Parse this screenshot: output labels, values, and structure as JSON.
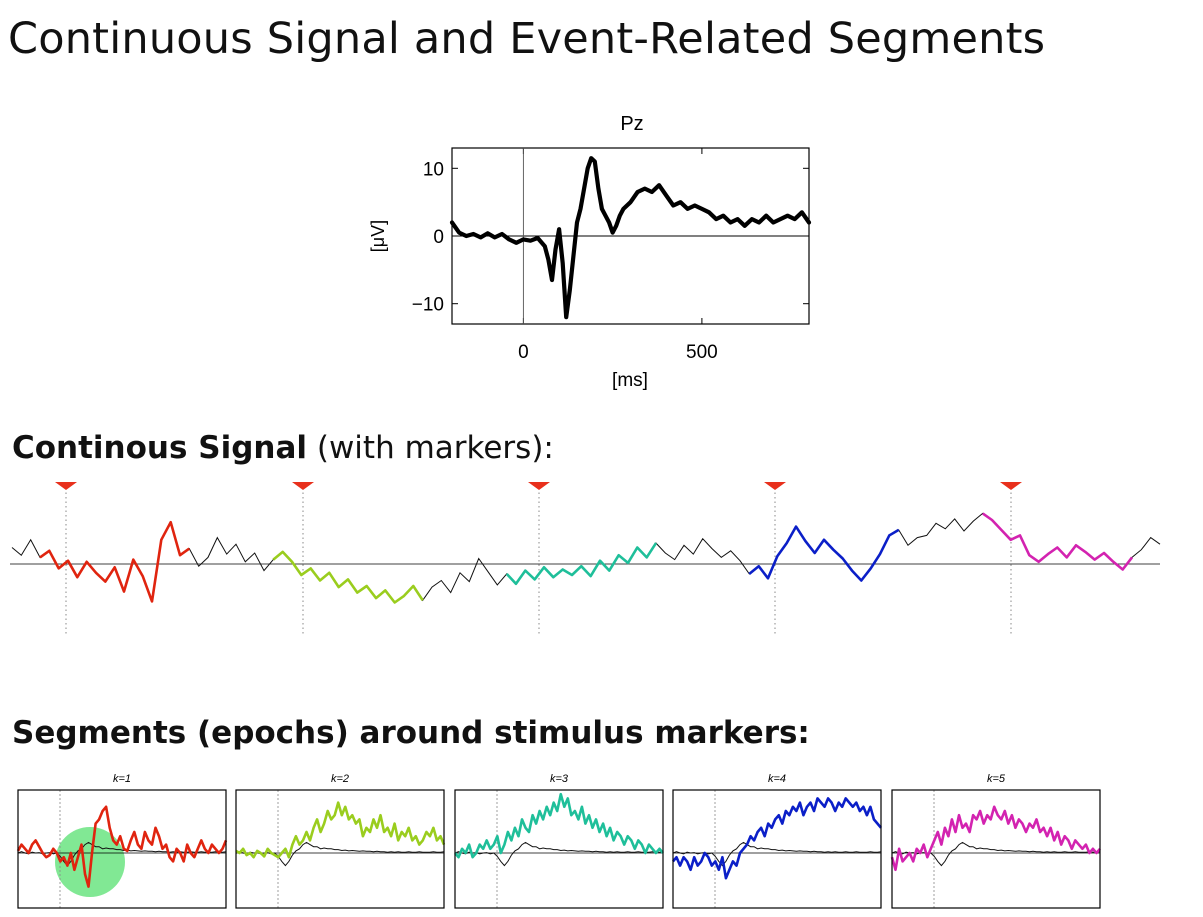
{
  "slide": {
    "title": "Continuous Signal and Event-Related Segments",
    "continuous_heading_bold": "Continous Signal",
    "continuous_heading_rest": " (with markers):",
    "segments_heading": "Segments (epochs) around stimulus markers:"
  },
  "colors": {
    "erp": "#000000",
    "baseline": "#000000",
    "marker": "#e8301c",
    "highlight": "#3ddc5a",
    "segment_colors": [
      "#e0240f",
      "#9acd1e",
      "#1fbf9a",
      "#0b1fc8",
      "#d323b0"
    ]
  },
  "chart_data": [
    {
      "type": "line",
      "title": "Pz",
      "xlabel": "[ms]",
      "ylabel": "[μV]",
      "xlim": [
        -200,
        800
      ],
      "ylim": [
        -13,
        13
      ],
      "xticks": [
        0,
        500
      ],
      "xtick_labels": [
        "0",
        "500"
      ],
      "yticks": [
        -10,
        0,
        10
      ],
      "ytick_labels": [
        "−10",
        "0",
        "10"
      ],
      "stimulus_onset_ms": 0,
      "series": [
        {
          "x": [
            -200,
            -180,
            -160,
            -140,
            -120,
            -100,
            -80,
            -60,
            -40,
            -20,
            0,
            20,
            40,
            60,
            70,
            80,
            90,
            100,
            110,
            120,
            130,
            140,
            150,
            160,
            170,
            180,
            190,
            200,
            210,
            220,
            230,
            240,
            250,
            260,
            270,
            280,
            300,
            320,
            340,
            360,
            380,
            400,
            420,
            440,
            460,
            480,
            500,
            520,
            540,
            560,
            580,
            600,
            620,
            640,
            660,
            680,
            700,
            720,
            740,
            760,
            780,
            800
          ],
          "y": [
            2,
            0.5,
            0,
            0.3,
            -0.2,
            0.4,
            -0.2,
            0.3,
            -0.5,
            -1,
            -0.5,
            -0.7,
            -0.3,
            -1.5,
            -3.5,
            -6.5,
            -2,
            1,
            -4,
            -12,
            -8,
            -3,
            2,
            4,
            7,
            10,
            11.5,
            11,
            7,
            4,
            3,
            2,
            0.5,
            1.5,
            3,
            4,
            5,
            6.5,
            7,
            6.5,
            7.5,
            6,
            4.5,
            5,
            4,
            4.5,
            4,
            3.5,
            2.5,
            3,
            2,
            2.5,
            1.5,
            2.5,
            2,
            3,
            2,
            2.5,
            3,
            2.5,
            3.5,
            2
          ]
        }
      ]
    },
    {
      "type": "line",
      "title": "",
      "marker_count": 5,
      "segment_labels": [
        "1",
        "2",
        "3",
        "4",
        "5"
      ],
      "series": [
        {
          "y": [
            1.5,
            0.8,
            2.2,
            0.6,
            1.2,
            -0.4,
            0.3,
            -1.2,
            0.2,
            -0.8,
            -1.6,
            -0.3,
            -2.5,
            0.4,
            -1.1,
            -3.4,
            2.2,
            3.8,
            0.8,
            1.4,
            -0.2,
            0.6,
            2.4,
            0.9,
            1.8,
            0.2,
            1.0,
            -0.6,
            0.4,
            1.1,
            0.2,
            -1.0,
            -0.4,
            -1.5,
            -0.8,
            -2.1,
            -1.4,
            -2.6,
            -2.0,
            -3.1,
            -2.4,
            -3.5,
            -2.9,
            -2.0,
            -3.3,
            -2.1,
            -1.5,
            -2.6,
            -0.8,
            -1.6,
            0.5,
            -0.7,
            -1.9,
            -0.9,
            -1.8,
            -0.6,
            -1.4,
            -0.3,
            -1.2,
            -0.5,
            -1.0,
            -0.2,
            -1.1,
            0.3,
            -0.6,
            0.8,
            0.1,
            1.5,
            0.6,
            1.9,
            1.0,
            0.4,
            1.7,
            0.9,
            2.3,
            1.4,
            0.6,
            1.2,
            0.3,
            -0.9,
            -0.2,
            -1.3,
            0.7,
            1.9,
            3.4,
            2.1,
            1.0,
            2.2,
            1.3,
            0.5,
            -0.6,
            -1.5,
            -0.4,
            0.9,
            2.6,
            3.1,
            1.7,
            2.4,
            2.6,
            3.7,
            3.2,
            4.1,
            3.0,
            3.9,
            4.6,
            4.0,
            3.1,
            2.2,
            2.6,
            0.8,
            0.2,
            0.9,
            1.5,
            0.6,
            1.7,
            1.1,
            0.4,
            1.0,
            0.2,
            -0.5,
            0.6,
            1.3,
            2.4,
            1.8
          ]
        }
      ]
    },
    {
      "type": "line",
      "title": "",
      "panels": [
        {
          "label": "k=1",
          "series": [
            {
              "y": [
                0.5,
                2,
                1,
                0,
                2,
                3,
                1.5,
                0,
                -1,
                -0.5,
                1,
                0,
                -2,
                -1,
                -3,
                0,
                -4,
                -1,
                2,
                -5,
                -8,
                0,
                7,
                8,
                10,
                11,
                6,
                3,
                2,
                4,
                1,
                0.5,
                3,
                5,
                2,
                1,
                5,
                3,
                2,
                6,
                4,
                1,
                2,
                -1,
                -2,
                1,
                0,
                -2,
                2,
                0,
                -1,
                1,
                3,
                1,
                0,
                2,
                1,
                0,
                1,
                3
              ]
            },
            {
              "y": [
                0,
                0.3,
                0,
                -0.2,
                0.2,
                0,
                0.1,
                -0.2,
                0,
                0.1,
                -0.2,
                0,
                -0.8,
                -2,
                -3,
                -2,
                -0.5,
                0.5,
                1,
                2,
                2.5,
                2,
                1.5,
                1.5,
                1,
                1.2,
                1,
                1,
                0.8,
                0.8,
                0.6,
                0.7,
                0.5,
                0.6,
                0.5,
                0.4,
                0.5,
                0.4,
                0.4,
                0.3,
                0.4,
                0.3,
                0.3,
                0.2,
                0.3,
                0.2,
                0.3,
                0.2,
                0.2,
                0.3,
                0.2,
                0.2,
                0.3,
                0.2,
                0.2,
                0.2,
                0.3,
                0.2,
                0.2,
                0.3
              ]
            }
          ]
        },
        {
          "label": "k=2",
          "series": [
            {
              "y": [
                0.5,
                0,
                1,
                -0.5,
                0,
                -1,
                0.5,
                0,
                -0.8,
                1,
                0,
                -0.5,
                -1,
                0,
                1,
                -1,
                2,
                4,
                2,
                3,
                5,
                3,
                6,
                8,
                5,
                7,
                10,
                8,
                9,
                12,
                9,
                11,
                8,
                9,
                7,
                8,
                4,
                6,
                5,
                8,
                6,
                9,
                5,
                6,
                4,
                7,
                3,
                5,
                4,
                6,
                3,
                4,
                2,
                3,
                5,
                4,
                6,
                3,
                4,
                2
              ]
            },
            {
              "y": [
                0,
                0.3,
                0,
                -0.2,
                0.2,
                0,
                0.1,
                -0.2,
                0,
                0.1,
                -0.2,
                0,
                -0.8,
                -2,
                -3,
                -2,
                -0.5,
                0.5,
                1,
                2,
                2.5,
                2,
                1.5,
                1.5,
                1,
                1.2,
                1,
                1,
                0.8,
                0.8,
                0.6,
                0.7,
                0.5,
                0.6,
                0.5,
                0.4,
                0.5,
                0.4,
                0.4,
                0.3,
                0.4,
                0.3,
                0.3,
                0.2,
                0.3,
                0.2,
                0.3,
                0.2,
                0.2,
                0.3,
                0.2,
                0.2,
                0.3,
                0.2,
                0.2,
                0.2,
                0.3,
                0.2,
                0.2,
                0.3
              ]
            }
          ]
        },
        {
          "label": "k=3",
          "series": [
            {
              "y": [
                0,
                -1,
                1,
                0,
                2,
                -1,
                0,
                2,
                1,
                3,
                1,
                2,
                4,
                0,
                2,
                5,
                3,
                6,
                4,
                8,
                6,
                5,
                9,
                7,
                10,
                8,
                11,
                9,
                12,
                10,
                14,
                11,
                13,
                9,
                10,
                8,
                11,
                7,
                9,
                6,
                8,
                5,
                7,
                4,
                6,
                3,
                5,
                4,
                2,
                4,
                3,
                1,
                3,
                2,
                0,
                2,
                1,
                0,
                1,
                0
              ]
            },
            {
              "y": [
                0,
                0.3,
                0,
                -0.2,
                0.2,
                0,
                0.1,
                -0.2,
                0,
                0.1,
                -0.2,
                0,
                -0.8,
                -2,
                -3,
                -2,
                -0.5,
                0.5,
                1,
                2,
                2.5,
                2,
                1.5,
                1.5,
                1,
                1.2,
                1,
                1,
                0.8,
                0.8,
                0.6,
                0.7,
                0.5,
                0.6,
                0.5,
                0.4,
                0.5,
                0.4,
                0.4,
                0.3,
                0.4,
                0.3,
                0.3,
                0.2,
                0.3,
                0.2,
                0.3,
                0.2,
                0.2,
                0.3,
                0.2,
                0.2,
                0.3,
                0.2,
                0.2,
                0.2,
                0.3,
                0.2,
                0.2,
                0.3
              ]
            }
          ]
        },
        {
          "label": "k=4",
          "series": [
            {
              "y": [
                -2,
                -1,
                -3,
                -1,
                -2,
                -4,
                -1,
                -3,
                -2,
                0,
                -1,
                -3,
                -2,
                -4,
                -1,
                -6,
                -4,
                -2,
                -3,
                0,
                1,
                2,
                4,
                3,
                5,
                6,
                4,
                7,
                6,
                8,
                9,
                7,
                10,
                9,
                11,
                10,
                12,
                9,
                11,
                12,
                10,
                13,
                12,
                11,
                13,
                12,
                10,
                12,
                11,
                13,
                12,
                11,
                12,
                10,
                11,
                9,
                11,
                8,
                7,
                6
              ]
            },
            {
              "y": [
                0,
                0.3,
                0,
                -0.2,
                0.2,
                0,
                0.1,
                -0.2,
                0,
                0.1,
                -0.2,
                0,
                -0.8,
                -2,
                -3,
                -2,
                -0.5,
                0.5,
                1,
                2,
                2.5,
                2,
                1.5,
                1.5,
                1,
                1.2,
                1,
                1,
                0.8,
                0.8,
                0.6,
                0.7,
                0.5,
                0.6,
                0.5,
                0.4,
                0.5,
                0.4,
                0.4,
                0.3,
                0.4,
                0.3,
                0.3,
                0.2,
                0.3,
                0.2,
                0.3,
                0.2,
                0.2,
                0.3,
                0.2,
                0.2,
                0.3,
                0.2,
                0.2,
                0.2,
                0.3,
                0.2,
                0.2,
                0.3
              ]
            }
          ]
        },
        {
          "label": "k=5",
          "series": [
            {
              "y": [
                -1,
                -4,
                1,
                -2,
                -1,
                0,
                -2,
                1,
                0,
                2,
                -1,
                1,
                3,
                5,
                2,
                6,
                4,
                8,
                5,
                9,
                6,
                7,
                5,
                9,
                8,
                10,
                7,
                9,
                8,
                11,
                9,
                8,
                10,
                7,
                9,
                6,
                8,
                7,
                5,
                7,
                6,
                8,
                5,
                6,
                4,
                6,
                3,
                5,
                2,
                4,
                3,
                1,
                3,
                2,
                1,
                2,
                0,
                1,
                0,
                1
              ]
            },
            {
              "y": [
                0,
                0.3,
                0,
                -0.2,
                0.2,
                0,
                0.1,
                -0.2,
                0,
                0.1,
                -0.2,
                0,
                -0.8,
                -2,
                -3,
                -2,
                -0.5,
                0.5,
                1,
                2,
                2.5,
                2,
                1.5,
                1.5,
                1,
                1.2,
                1,
                1,
                0.8,
                0.8,
                0.6,
                0.7,
                0.5,
                0.6,
                0.5,
                0.4,
                0.5,
                0.4,
                0.4,
                0.3,
                0.4,
                0.3,
                0.3,
                0.2,
                0.3,
                0.2,
                0.3,
                0.2,
                0.2,
                0.3,
                0.2,
                0.2,
                0.3,
                0.2,
                0.2,
                0.2,
                0.3,
                0.2,
                0.2,
                0.3
              ]
            }
          ]
        }
      ]
    }
  ]
}
